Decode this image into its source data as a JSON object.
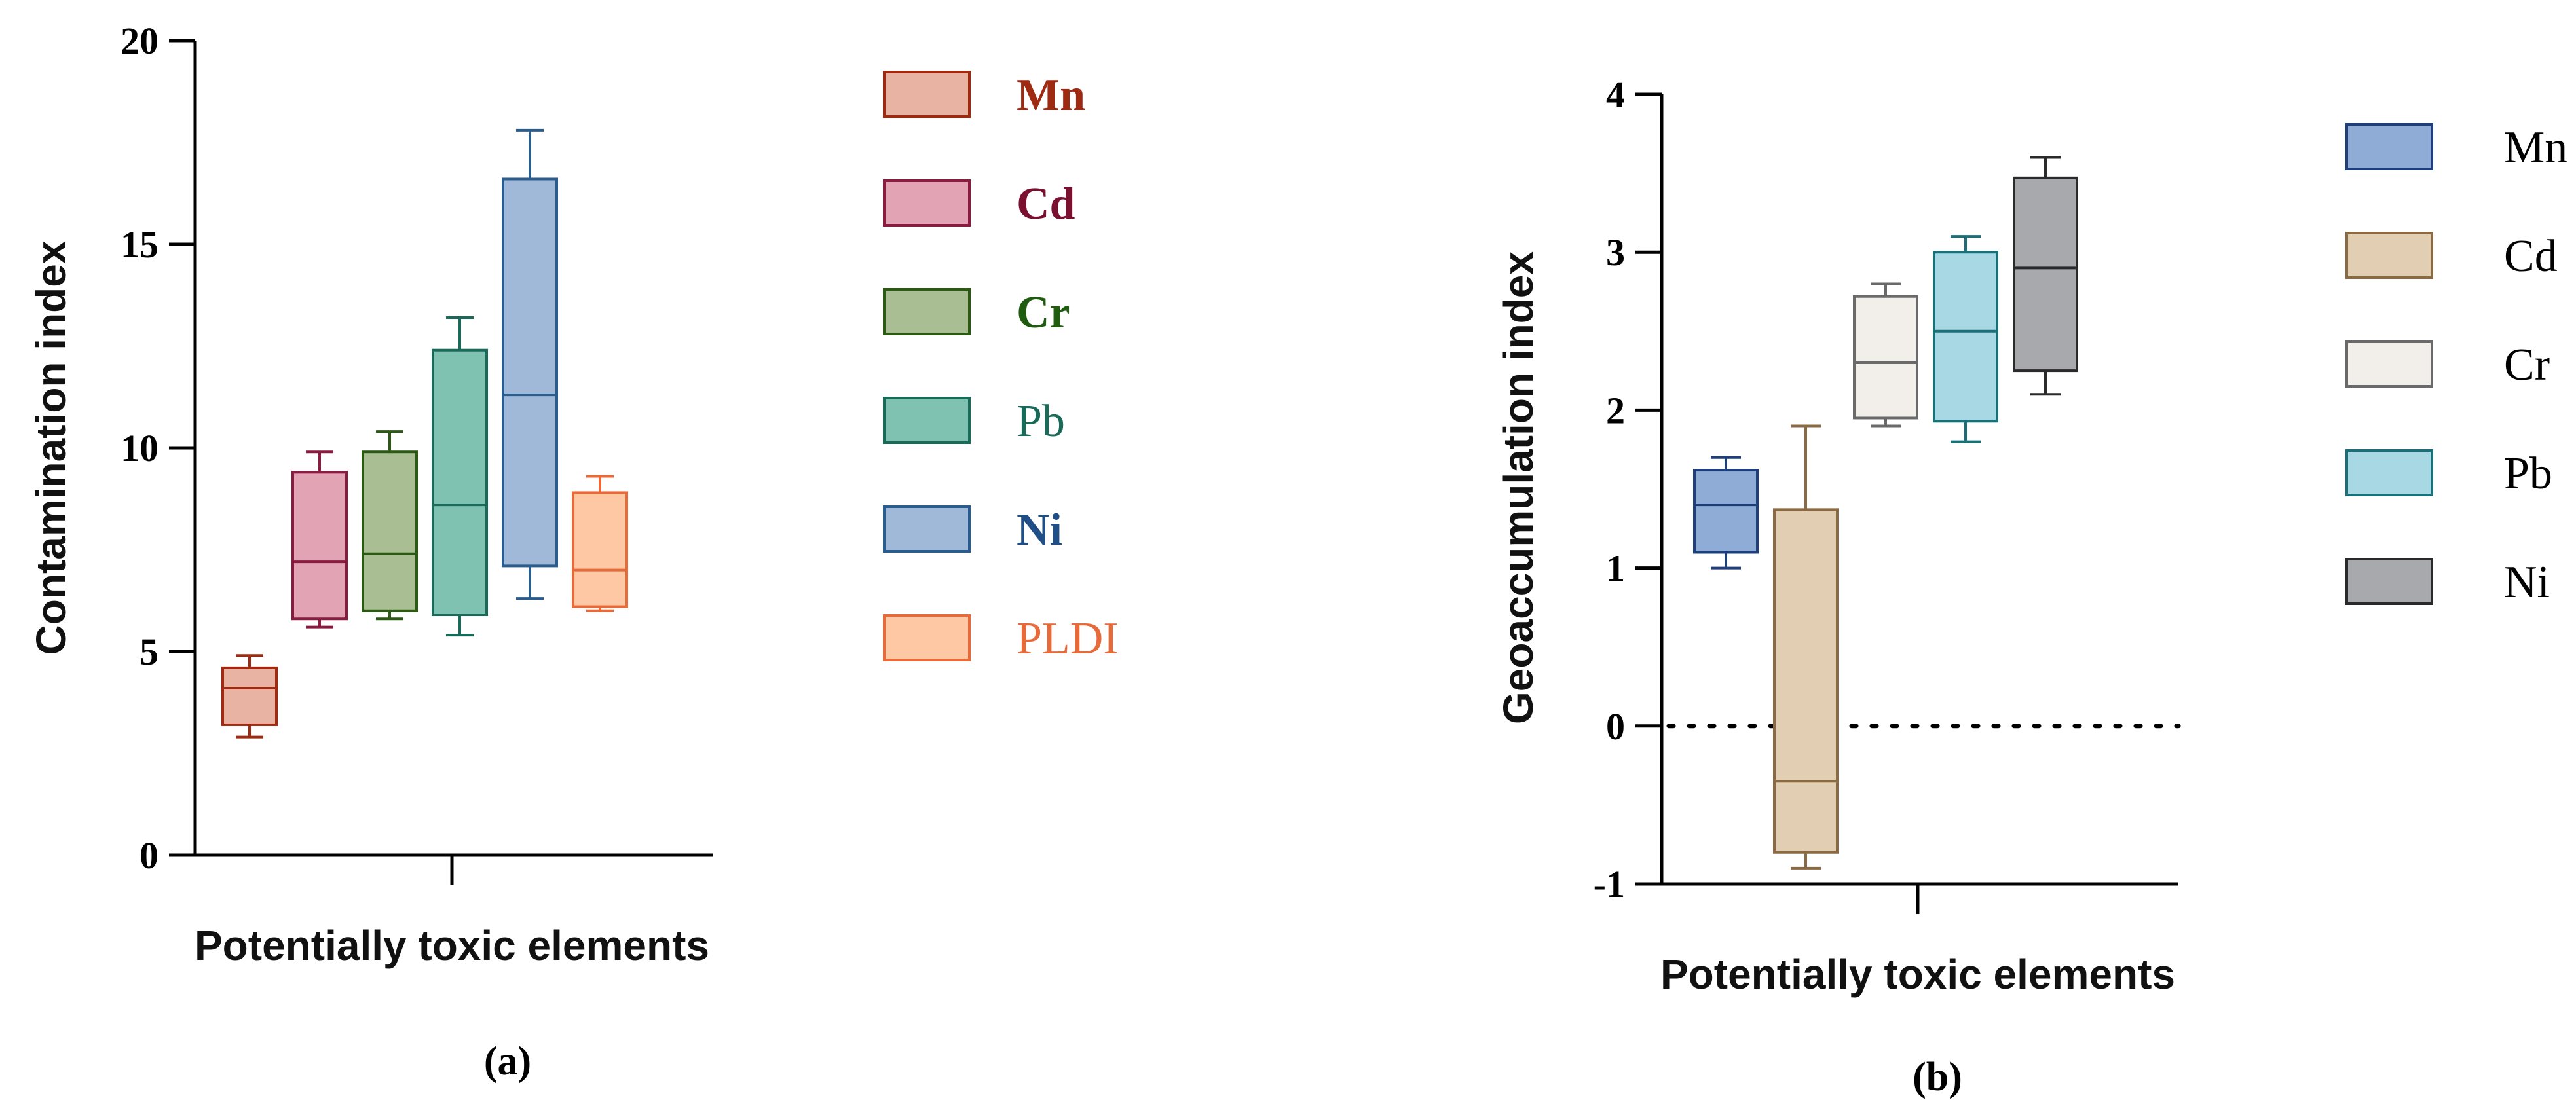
{
  "chart_data": [
    {
      "type": "box",
      "panel_label": "(a)",
      "ylabel": "Contamination index",
      "xlabel": "Potentially toxic elements",
      "ylim": [
        0,
        20
      ],
      "yticks": [
        0,
        5,
        10,
        15,
        20
      ],
      "legend_position": "right",
      "series": [
        {
          "name": "Mn",
          "min": 2.9,
          "q1": 3.2,
          "median": 4.1,
          "q3": 4.6,
          "max": 4.9,
          "fill": "#e8b3a3",
          "stroke": "#9e2a12",
          "label_color": "#9e2a12",
          "label_weight": "bold"
        },
        {
          "name": "Cd",
          "min": 5.6,
          "q1": 5.8,
          "median": 7.2,
          "q3": 9.4,
          "max": 9.9,
          "fill": "#e2a3b4",
          "stroke": "#8a1c42",
          "label_color": "#7a1030",
          "label_weight": "bold"
        },
        {
          "name": "Cr",
          "min": 5.8,
          "q1": 6.0,
          "median": 7.4,
          "q3": 9.9,
          "max": 10.4,
          "fill": "#a9bf93",
          "stroke": "#2c5a14",
          "label_color": "#1f5c10",
          "label_weight": "bold"
        },
        {
          "name": "Pb",
          "min": 5.4,
          "q1": 5.9,
          "median": 8.6,
          "q3": 12.4,
          "max": 13.2,
          "fill": "#7fc2b2",
          "stroke": "#1a6a5a",
          "label_color": "#1a6a5a",
          "label_weight": "normal"
        },
        {
          "name": "Ni",
          "min": 6.3,
          "q1": 7.1,
          "median": 11.3,
          "q3": 16.6,
          "max": 17.8,
          "fill": "#a1b9d9",
          "stroke": "#2a5d8e",
          "label_color": "#1f4f86",
          "label_weight": "bold"
        },
        {
          "name": "PLDI",
          "min": 6.0,
          "q1": 6.1,
          "median": 7.0,
          "q3": 8.9,
          "max": 9.3,
          "fill": "#fdc8a3",
          "stroke": "#e76a3b",
          "label_color": "#e76a3b",
          "label_weight": "normal"
        }
      ]
    },
    {
      "type": "box",
      "panel_label": "(b)",
      "ylabel": "Geoaccumulation index",
      "xlabel": "Potentially toxic elements",
      "ylim": [
        -1,
        4
      ],
      "yticks": [
        -1,
        0,
        1,
        2,
        3,
        4
      ],
      "reference_line": 0,
      "legend_position": "right",
      "series": [
        {
          "name": "Mn",
          "min": 1.0,
          "q1": 1.1,
          "median": 1.4,
          "q3": 1.62,
          "max": 1.7,
          "fill": "#8eacd6",
          "stroke": "#1e3f7a"
        },
        {
          "name": "Cd",
          "min": -0.9,
          "q1": -0.8,
          "median": -0.35,
          "q3": 1.37,
          "max": 1.9,
          "fill": "#e2cfb3",
          "stroke": "#8a6a42"
        },
        {
          "name": "Cr",
          "min": 1.9,
          "q1": 1.95,
          "median": 2.3,
          "q3": 2.72,
          "max": 2.8,
          "fill": "#f2efea",
          "stroke": "#6a6a6a"
        },
        {
          "name": "Pb",
          "min": 1.8,
          "q1": 1.93,
          "median": 2.5,
          "q3": 3.0,
          "max": 3.1,
          "fill": "#a8d8e4",
          "stroke": "#1a6f78"
        },
        {
          "name": "Ni",
          "min": 2.1,
          "q1": 2.25,
          "median": 2.9,
          "q3": 3.47,
          "max": 3.6,
          "fill": "#a7a9ad",
          "stroke": "#2a2a2a"
        }
      ]
    }
  ]
}
